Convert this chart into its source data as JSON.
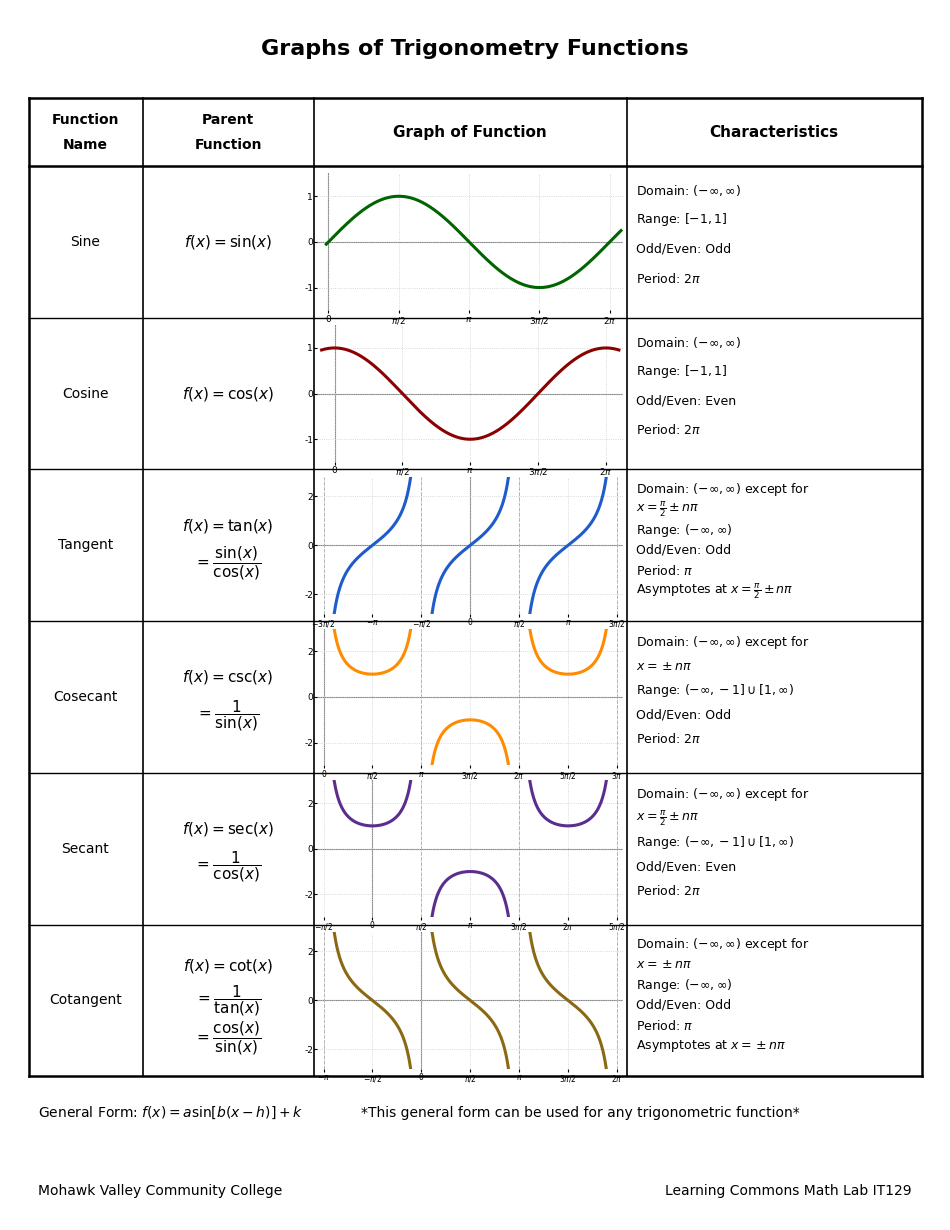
{
  "title": "Graphs of Trigonometry Functions",
  "rows": [
    {
      "name": "Sine",
      "type": "sine",
      "color": "#006400",
      "chars": [
        "Domain: $(-\\infty, \\infty)$",
        "Range: $[-1, 1]$",
        "Odd/Even: Odd",
        "Period: $2\\pi$"
      ]
    },
    {
      "name": "Cosine",
      "type": "cosine",
      "color": "#8B0000",
      "chars": [
        "Domain: $(-\\infty, \\infty)$",
        "Range: $[-1, 1]$",
        "Odd/Even: Even",
        "Period: $2\\pi$"
      ]
    },
    {
      "name": "Tangent",
      "type": "tangent",
      "color": "#1E5CCC",
      "chars": [
        "Domain: $(-\\infty, \\infty)$ except for",
        "$x = \\frac{\\pi}{2} \\pm n\\pi$",
        "Range: $(-\\infty, \\infty)$",
        "Odd/Even: Odd",
        "Period: $\\pi$",
        "Asymptotes at $x = \\frac{\\pi}{2} \\pm n\\pi$"
      ]
    },
    {
      "name": "Cosecant",
      "type": "cosecant",
      "color": "#FF8C00",
      "chars": [
        "Domain: $(-\\infty, \\infty)$ except for",
        "$x = \\pm n\\pi$",
        "Range: $(-\\infty, -1] \\cup [1, \\infty)$",
        "Odd/Even: Odd",
        "Period: $2\\pi$"
      ]
    },
    {
      "name": "Secant",
      "type": "secant",
      "color": "#5B2D8E",
      "chars": [
        "Domain: $(-\\infty, \\infty)$ except for",
        "$x = \\frac{\\pi}{2} \\pm n\\pi$",
        "Range: $(-\\infty, -1] \\cup [1, \\infty)$",
        "Odd/Even: Even",
        "Period: $2\\pi$"
      ]
    },
    {
      "name": "Cotangent",
      "type": "cotangent",
      "color": "#8B6914",
      "chars": [
        "Domain: $(-\\infty, \\infty)$ except for",
        "$x = \\pm n\\pi$",
        "Range: $(-\\infty, \\infty)$",
        "Odd/Even: Odd",
        "Period: $\\pi$",
        "Asymptotes at $x = \\pm n\\pi$"
      ]
    }
  ],
  "footer_left": "Mohawk Valley Community College",
  "footer_right": "Learning Commons Math Lab IT129"
}
